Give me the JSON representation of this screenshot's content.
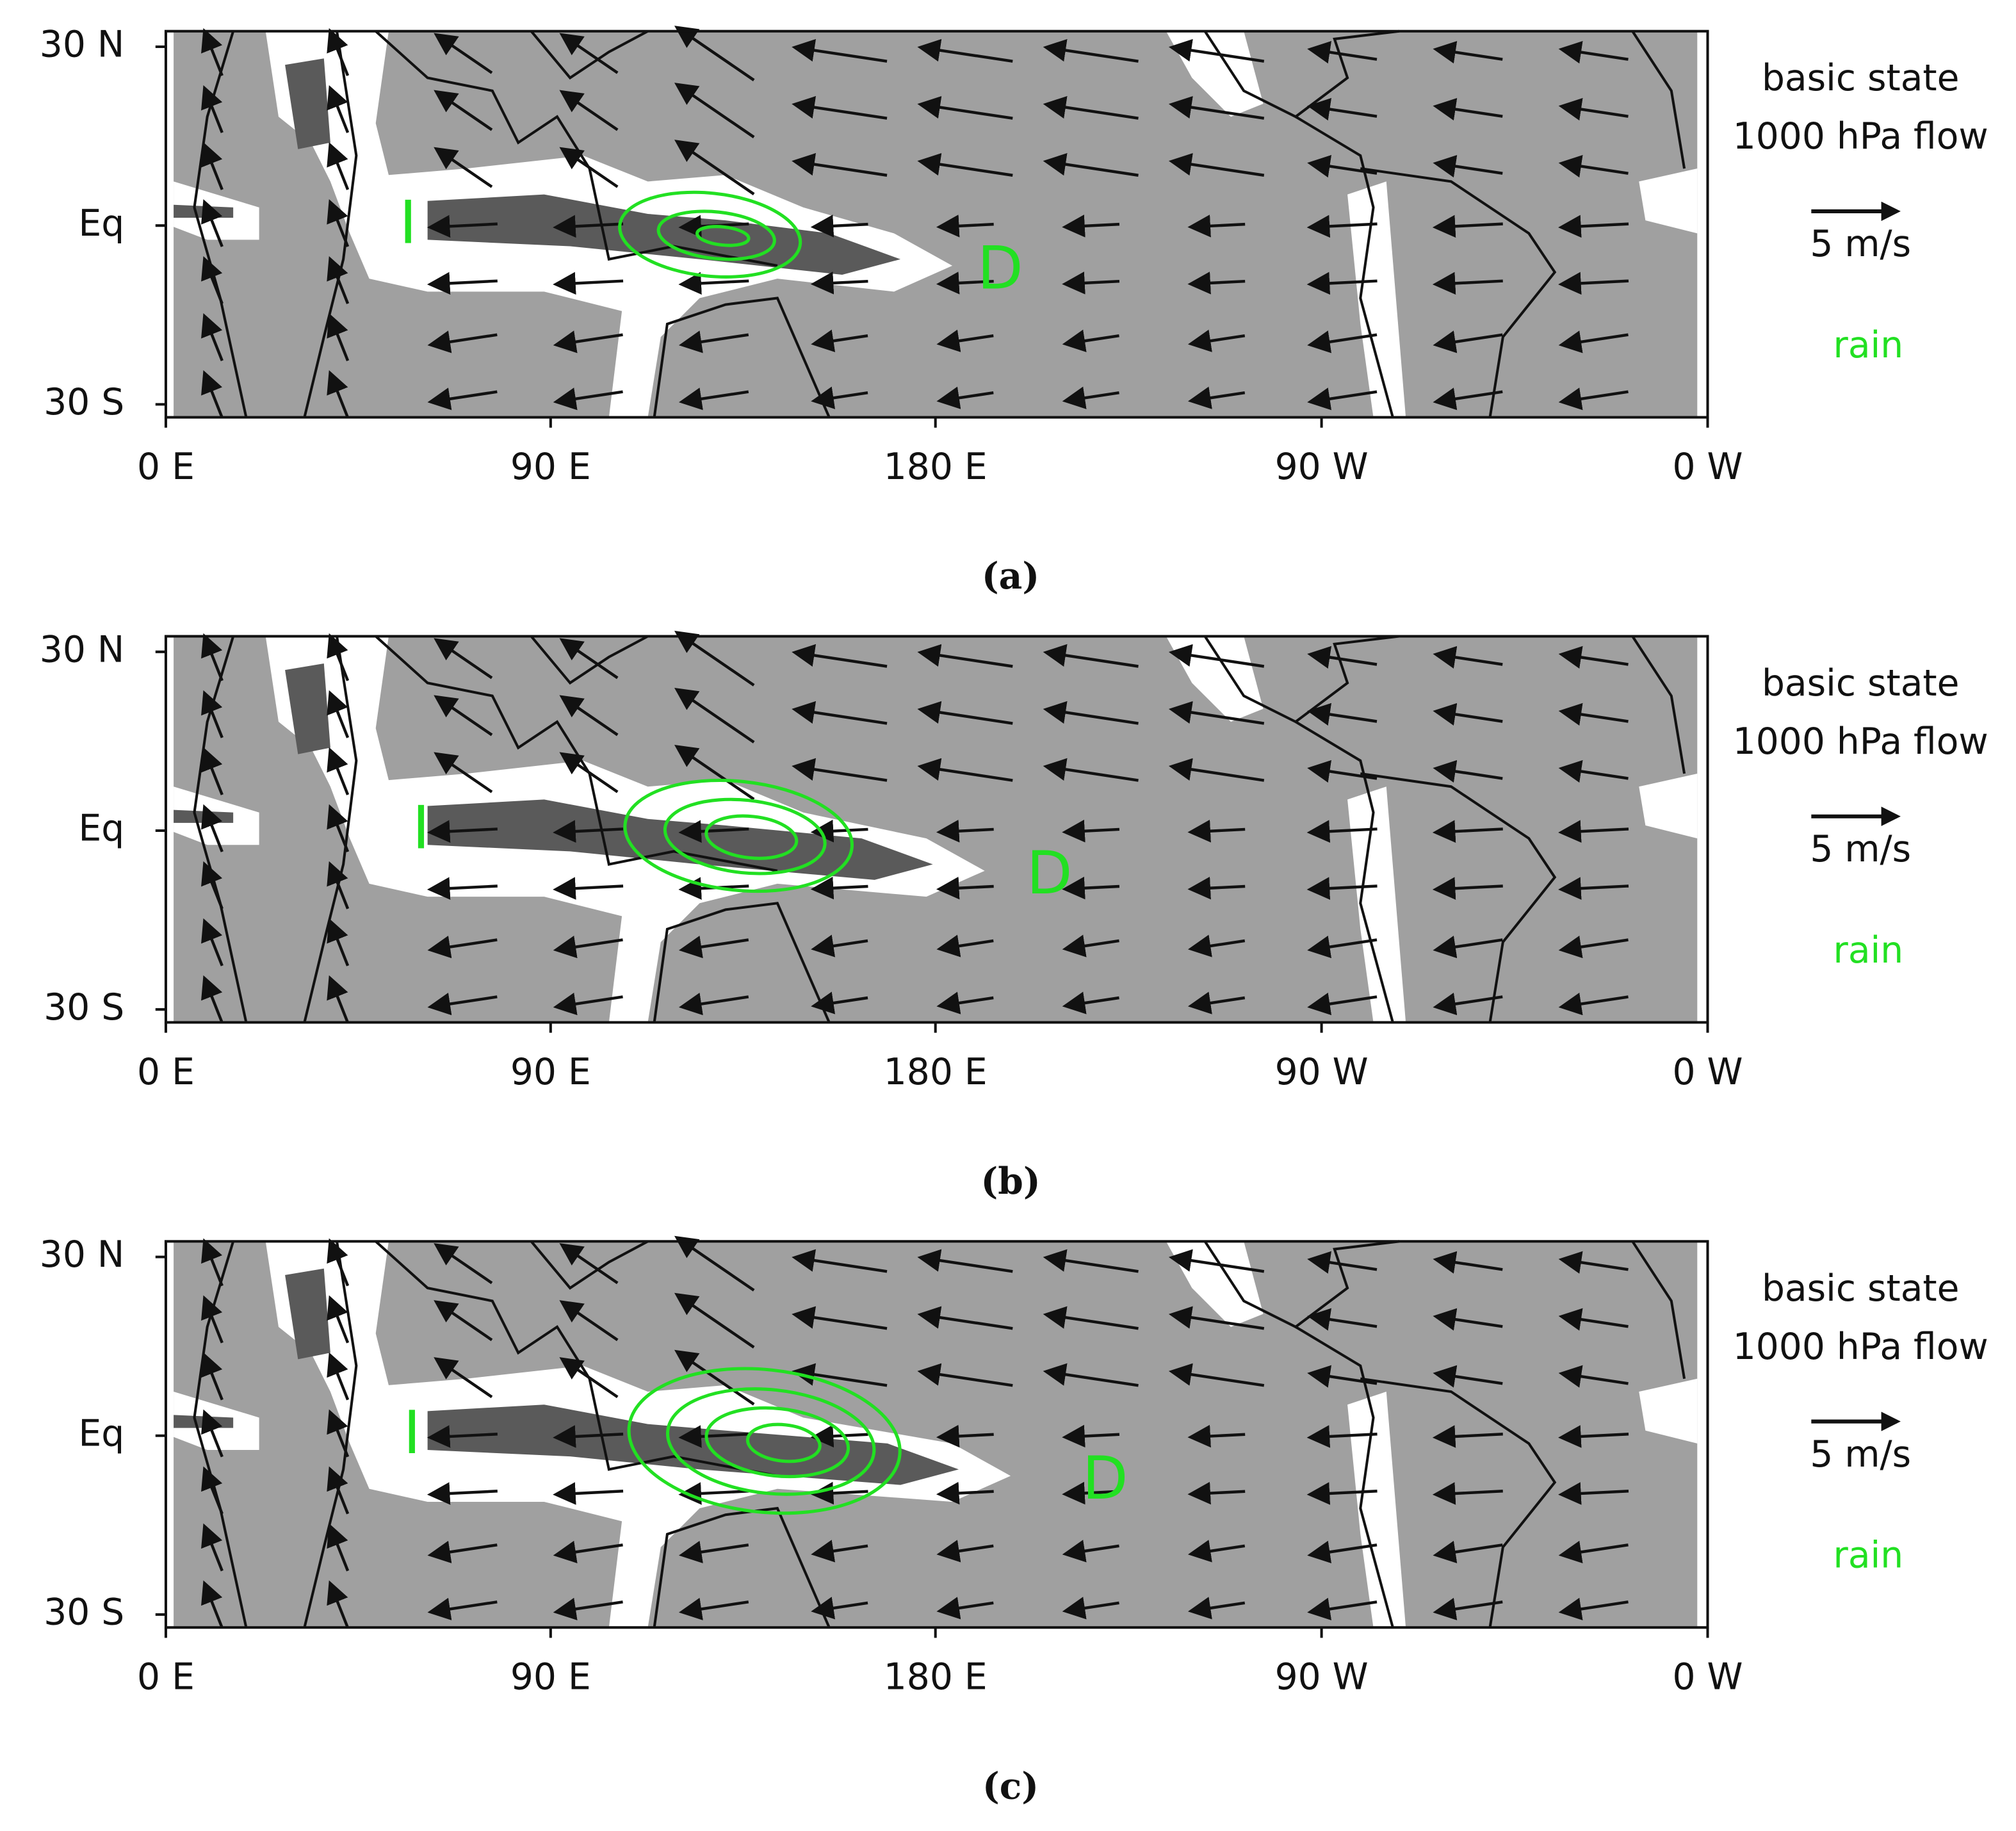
{
  "y_ticks": [
    "30 N",
    "Eq",
    "30 S"
  ],
  "x_ticks": [
    "0 E",
    "90 E",
    "180 E",
    "90 W",
    "0 W"
  ],
  "legend": {
    "line1": "basic state",
    "line2": "1000 hPa flow",
    "scale": "5 m/s",
    "rain": "rain"
  },
  "panels": [
    {
      "caption": "(a)",
      "labels": [
        "I",
        "D"
      ]
    },
    {
      "caption": "(b)",
      "labels": [
        "I",
        "D"
      ]
    },
    {
      "caption": "(c)",
      "labels": [
        "I",
        "D"
      ]
    }
  ]
}
